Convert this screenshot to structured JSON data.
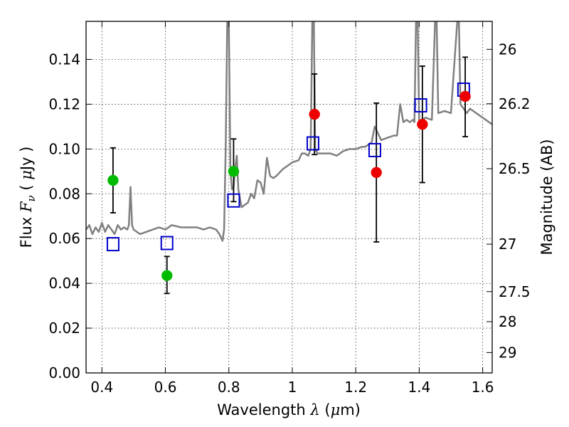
{
  "chart_data": {
    "type": "scatter",
    "xlabel": {
      "prefix": "Wavelength  ",
      "symbol": "λ",
      "open": " (",
      "unit_symbol": "μ",
      "unit_rest": "m)"
    },
    "ylabel": {
      "prefix": "Flux  ",
      "symbol": "F",
      "subscript": "ν",
      "open": "  ( ",
      "unit_symbol": "μ",
      "unit_rest": "Jy )"
    },
    "ylabel_right": "Magnitude (AB)",
    "xlim": [
      0.35,
      1.63
    ],
    "ylim": [
      0.0,
      0.157
    ],
    "xticks": [
      {
        "value": 0.4,
        "label": "0.4"
      },
      {
        "value": 0.6,
        "label": "0.6"
      },
      {
        "value": 0.8,
        "label": "0.8"
      },
      {
        "value": 1.0,
        "label": "1"
      },
      {
        "value": 1.2,
        "label": "1.2"
      },
      {
        "value": 1.4,
        "label": "1.4"
      },
      {
        "value": 1.6,
        "label": "1.6"
      }
    ],
    "yticks": [
      {
        "value": 0.0,
        "label": "0.00"
      },
      {
        "value": 0.02,
        "label": "0.02"
      },
      {
        "value": 0.04,
        "label": "0.04"
      },
      {
        "value": 0.06,
        "label": "0.06"
      },
      {
        "value": 0.08,
        "label": "0.08"
      },
      {
        "value": 0.1,
        "label": "0.10"
      },
      {
        "value": 0.12,
        "label": "0.12"
      },
      {
        "value": 0.14,
        "label": "0.14"
      }
    ],
    "right_ticks": [
      {
        "label": "26",
        "flux": 0.1445
      },
      {
        "label": "26.2",
        "flux": 0.1202
      },
      {
        "label": "26.5",
        "flux": 0.0912
      },
      {
        "label": "27",
        "flux": 0.0575
      },
      {
        "label": "27.5",
        "flux": 0.0363
      },
      {
        "label": "28",
        "flux": 0.0229
      },
      {
        "label": "29",
        "flux": 0.0091
      }
    ],
    "grid": true,
    "spectrum": {
      "color": "#808080",
      "points": [
        [
          0.35,
          0.064
        ],
        [
          0.36,
          0.066
        ],
        [
          0.37,
          0.062
        ],
        [
          0.38,
          0.065
        ],
        [
          0.39,
          0.063
        ],
        [
          0.4,
          0.067
        ],
        [
          0.41,
          0.063
        ],
        [
          0.42,
          0.066
        ],
        [
          0.43,
          0.064
        ],
        [
          0.44,
          0.062
        ],
        [
          0.45,
          0.066
        ],
        [
          0.46,
          0.064
        ],
        [
          0.47,
          0.065
        ],
        [
          0.48,
          0.064
        ],
        [
          0.485,
          0.066
        ],
        [
          0.49,
          0.083
        ],
        [
          0.495,
          0.066
        ],
        [
          0.5,
          0.064
        ],
        [
          0.52,
          0.062
        ],
        [
          0.54,
          0.063
        ],
        [
          0.56,
          0.064
        ],
        [
          0.58,
          0.065
        ],
        [
          0.6,
          0.064
        ],
        [
          0.62,
          0.066
        ],
        [
          0.65,
          0.065
        ],
        [
          0.68,
          0.065
        ],
        [
          0.7,
          0.065
        ],
        [
          0.72,
          0.064
        ],
        [
          0.74,
          0.065
        ],
        [
          0.76,
          0.064
        ],
        [
          0.77,
          0.062
        ],
        [
          0.78,
          0.059
        ],
        [
          0.785,
          0.064
        ],
        [
          0.79,
          0.1
        ],
        [
          0.795,
          0.157
        ],
        [
          0.8,
          0.157
        ],
        [
          0.805,
          0.09
        ],
        [
          0.81,
          0.082
        ],
        [
          0.815,
          0.083
        ],
        [
          0.82,
          0.092
        ],
        [
          0.825,
          0.097
        ],
        [
          0.83,
          0.082
        ],
        [
          0.84,
          0.074
        ],
        [
          0.85,
          0.075
        ],
        [
          0.86,
          0.076
        ],
        [
          0.87,
          0.08
        ],
        [
          0.88,
          0.078
        ],
        [
          0.89,
          0.086
        ],
        [
          0.9,
          0.085
        ],
        [
          0.91,
          0.08
        ],
        [
          0.92,
          0.096
        ],
        [
          0.93,
          0.088
        ],
        [
          0.94,
          0.087
        ],
        [
          0.95,
          0.088
        ],
        [
          0.97,
          0.091
        ],
        [
          0.99,
          0.093
        ],
        [
          1.0,
          0.094
        ],
        [
          1.02,
          0.095
        ],
        [
          1.03,
          0.098
        ],
        [
          1.04,
          0.098
        ],
        [
          1.05,
          0.097
        ],
        [
          1.058,
          0.1
        ],
        [
          1.063,
          0.157
        ],
        [
          1.068,
          0.157
        ],
        [
          1.072,
          0.1
        ],
        [
          1.08,
          0.098
        ],
        [
          1.1,
          0.098
        ],
        [
          1.12,
          0.098
        ],
        [
          1.14,
          0.097
        ],
        [
          1.16,
          0.099
        ],
        [
          1.18,
          0.1
        ],
        [
          1.2,
          0.1
        ],
        [
          1.22,
          0.101
        ],
        [
          1.23,
          0.101
        ],
        [
          1.24,
          0.102
        ],
        [
          1.25,
          0.103
        ],
        [
          1.26,
          0.11
        ],
        [
          1.28,
          0.104
        ],
        [
          1.3,
          0.105
        ],
        [
          1.32,
          0.106
        ],
        [
          1.33,
          0.106
        ],
        [
          1.34,
          0.12
        ],
        [
          1.345,
          0.116
        ],
        [
          1.35,
          0.112
        ],
        [
          1.36,
          0.113
        ],
        [
          1.37,
          0.112
        ],
        [
          1.38,
          0.113
        ],
        [
          1.385,
          0.112
        ],
        [
          1.39,
          0.157
        ],
        [
          1.395,
          0.157
        ],
        [
          1.4,
          0.112
        ],
        [
          1.42,
          0.114
        ],
        [
          1.44,
          0.113
        ],
        [
          1.45,
          0.157
        ],
        [
          1.455,
          0.157
        ],
        [
          1.46,
          0.116
        ],
        [
          1.48,
          0.117
        ],
        [
          1.5,
          0.116
        ],
        [
          1.52,
          0.157
        ],
        [
          1.525,
          0.157
        ],
        [
          1.53,
          0.12
        ],
        [
          1.54,
          0.118
        ],
        [
          1.55,
          0.116
        ],
        [
          1.56,
          0.118
        ],
        [
          1.57,
          0.117
        ],
        [
          1.58,
          0.116
        ],
        [
          1.6,
          0.114
        ],
        [
          1.62,
          0.112
        ],
        [
          1.63,
          0.111
        ]
      ]
    },
    "series": [
      {
        "marker": "filled-circle",
        "color": "#00bb00",
        "points": [
          {
            "x": 0.435,
            "y": 0.086,
            "err_low": 0.0715,
            "err_high": 0.1005
          },
          {
            "x": 0.605,
            "y": 0.0435,
            "err_low": 0.0355,
            "err_high": 0.052
          },
          {
            "x": 0.815,
            "y": 0.09,
            "err_low": 0.0765,
            "err_high": 0.1045
          }
        ]
      },
      {
        "marker": "filled-circle",
        "color": "#ee0000",
        "points": [
          {
            "x": 1.07,
            "y": 0.1155,
            "err_low": 0.0975,
            "err_high": 0.1335
          },
          {
            "x": 1.265,
            "y": 0.0895,
            "err_low": 0.0585,
            "err_high": 0.1205
          },
          {
            "x": 1.41,
            "y": 0.111,
            "err_low": 0.085,
            "err_high": 0.137
          },
          {
            "x": 1.545,
            "y": 0.1235,
            "err_low": 0.1055,
            "err_high": 0.141
          }
        ]
      },
      {
        "marker": "open-square",
        "color": "#0000cc",
        "points": [
          {
            "x": 0.435,
            "y": 0.0575
          },
          {
            "x": 0.605,
            "y": 0.058
          },
          {
            "x": 0.815,
            "y": 0.077
          },
          {
            "x": 1.065,
            "y": 0.1025
          },
          {
            "x": 1.26,
            "y": 0.0995
          },
          {
            "x": 1.405,
            "y": 0.1195
          },
          {
            "x": 1.54,
            "y": 0.1265
          }
        ]
      }
    ]
  }
}
